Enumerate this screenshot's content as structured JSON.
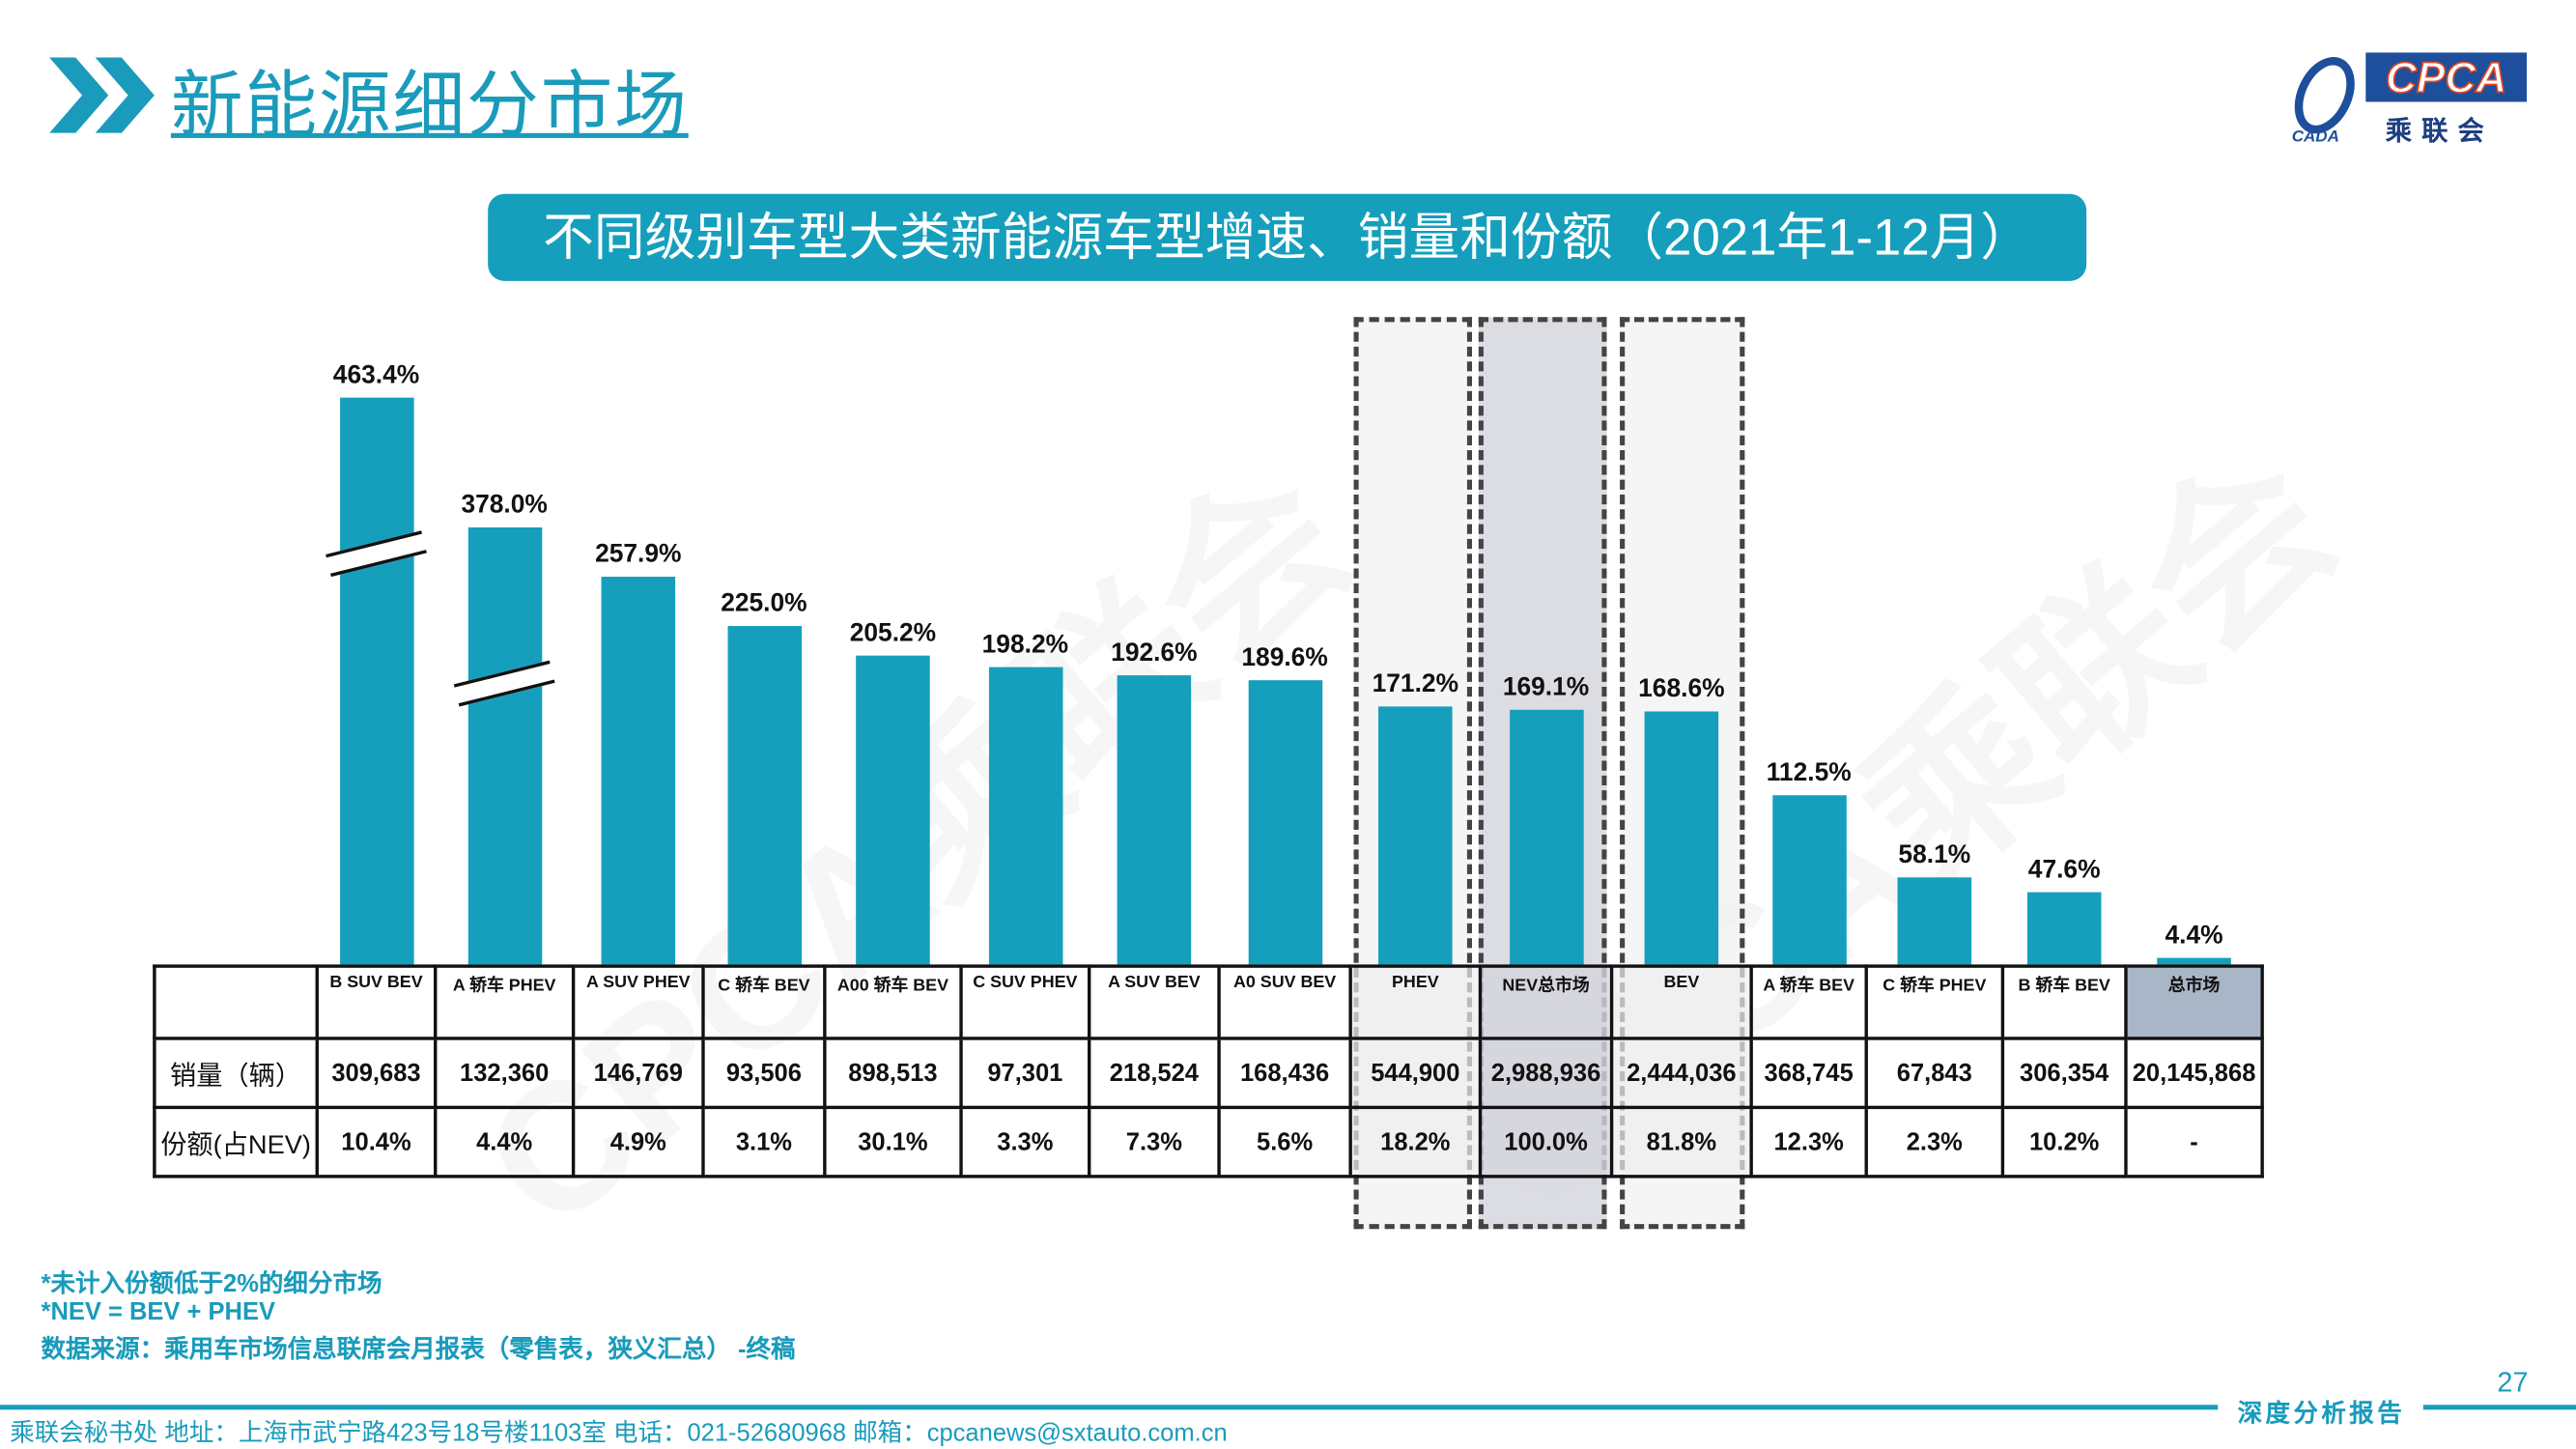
{
  "header": {
    "title": "新能源细分市场",
    "logo_text": "CPCA",
    "logo_sub": "乘联会",
    "logo_small": "CADA"
  },
  "subtitle": "不同级别车型大类新能源车型增速、销量和份额（2021年1-12月）",
  "colors": {
    "bar": "#159fbd",
    "accent": "#1a9bbb",
    "highlight_total": "#a9b6c7"
  },
  "chart_data": {
    "type": "bar",
    "title": "不同级别车型大类新能源车型增速、销量和份额（2021年1-12月）",
    "categories": [
      "B SUV BEV",
      "A 轿车 PHEV",
      "A SUV PHEV",
      "C 轿车 BEV",
      "A00 轿车 BEV",
      "C SUV PHEV",
      "A SUV BEV",
      "A0 SUV BEV",
      "PHEV",
      "NEV总市场",
      "BEV",
      "A 轿车 BEV",
      "C 轿车 PHEV",
      "B 轿车 BEV",
      "总市场"
    ],
    "values": [
      463.4,
      378.0,
      257.9,
      225.0,
      205.2,
      198.2,
      192.6,
      189.6,
      171.2,
      169.1,
      168.6,
      112.5,
      58.1,
      47.6,
      4.4
    ],
    "value_labels": [
      "463.4%",
      "378.0%",
      "257.9%",
      "225.0%",
      "205.2%",
      "198.2%",
      "192.6%",
      "189.6%",
      "171.2%",
      "169.1%",
      "168.6%",
      "112.5%",
      "58.1%",
      "47.6%",
      "4.4%"
    ],
    "axis_break_on": [
      "B SUV BEV",
      "A 轿车 PHEV"
    ],
    "highlighted": [
      "PHEV",
      "NEV总市场",
      "BEV"
    ],
    "grid": false
  },
  "table": {
    "rows": [
      {
        "label": "销量（辆）",
        "values": [
          "309,683",
          "132,360",
          "146,769",
          "93,506",
          "898,513",
          "97,301",
          "218,524",
          "168,436",
          "544,900",
          "2,988,936",
          "2,444,036",
          "368,745",
          "67,843",
          "306,354",
          "20,145,868"
        ]
      },
      {
        "label": "份额(占NEV)",
        "values": [
          "10.4%",
          "4.4%",
          "4.9%",
          "3.1%",
          "30.1%",
          "3.3%",
          "7.3%",
          "5.6%",
          "18.2%",
          "100.0%",
          "81.8%",
          "12.3%",
          "2.3%",
          "10.2%",
          "-"
        ]
      }
    ]
  },
  "notes": [
    "*未计入份额低于2%的细分市场",
    "*NEV = BEV + PHEV",
    "数据来源：乘用车市场信息联席会月报表（零售表，狭义汇总） -终稿"
  ],
  "footer": {
    "text": "乘联会秘书处  地址：上海市武宁路423号18号楼1103室  电话：021-52680968  邮箱：cpcanews@sxtauto.com.cn",
    "report": "深度分析报告",
    "page": "27"
  },
  "watermark": "CPCA乘联会"
}
